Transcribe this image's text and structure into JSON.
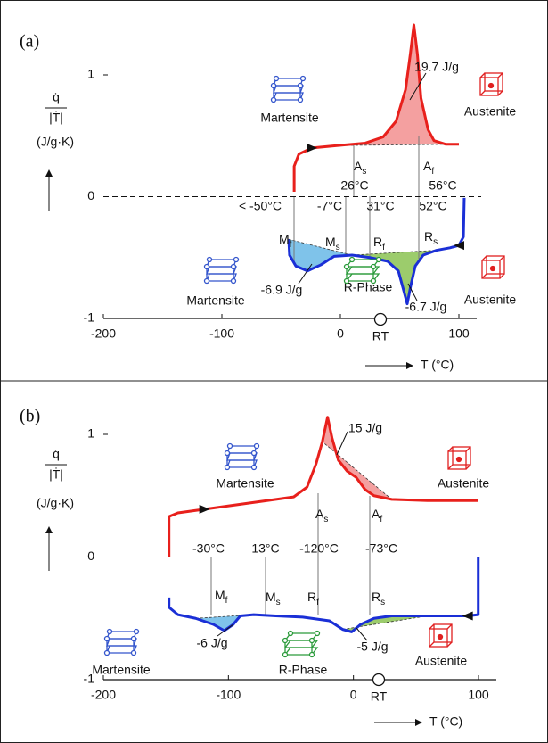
{
  "chart_data": [
    {
      "type": "line",
      "panel_label": "(a)",
      "y_label_top": "q̇",
      "y_label_bottom": "|Ṫ|",
      "y_unit": "(J/g·K)",
      "x_label": "T (°C)",
      "rt_label": "RT",
      "xlim": [
        -200,
        100
      ],
      "ylim": [
        -1,
        1
      ],
      "xticks": [
        -200,
        -100,
        0,
        100
      ],
      "yticks": [
        -1,
        0,
        1
      ],
      "series": [
        {
          "color": "#e8201c",
          "x": [
            -39,
            -39,
            -35,
            -24,
            -2,
            21,
            36,
            47,
            55,
            59,
            62,
            65,
            68,
            74,
            79,
            89,
            100
          ],
          "values": [
            0.04,
            0.25,
            0.35,
            0.4,
            0.42,
            0.44,
            0.49,
            0.62,
            0.88,
            1.17,
            1.41,
            1.17,
            0.81,
            0.55,
            0.46,
            0.43,
            0.43
          ]
        },
        {
          "color": "#1a2fd6",
          "x": [
            104.5,
            103.8,
            100,
            92.5,
            81.2,
            69.9,
            63.2,
            59.4,
            56.4,
            53.4,
            48.9,
            39.8,
            24.8,
            9.8,
            -5.3,
            -16.5,
            -27.8,
            -37.6,
            -42.9,
            -43.6
          ],
          "values": [
            -0.01,
            -0.33,
            -0.4,
            -0.42,
            -0.44,
            -0.48,
            -0.57,
            -0.73,
            -0.88,
            -0.77,
            -0.61,
            -0.53,
            -0.5,
            -0.48,
            -0.49,
            -0.56,
            -0.61,
            -0.57,
            -0.48,
            -0.35
          ]
        }
      ],
      "transitions": [
        {
          "symbol": "A",
          "sub": "s",
          "temp": "26°C"
        },
        {
          "symbol": "A",
          "sub": "f",
          "temp": "56°C"
        },
        {
          "symbol": "M",
          "sub": "f",
          "temp": "< -50°C"
        },
        {
          "symbol": "M",
          "sub": "s",
          "temp": "-7°C"
        },
        {
          "symbol": "R",
          "sub": "f",
          "temp": "31°C"
        },
        {
          "symbol": "R",
          "sub": "s",
          "temp": "52°C"
        }
      ],
      "enthalpies": [
        "19.7 J/g",
        "-6.9 J/g",
        "-6.7 J/g"
      ],
      "phases": [
        "Martensite",
        "Austenite",
        "Martensite",
        "R-Phase",
        "Austenite"
      ]
    },
    {
      "type": "line",
      "panel_label": "(b)",
      "y_label_top": "q̇",
      "y_label_bottom": "|Ṫ|",
      "y_unit": "(J/g·K)",
      "x_label": "T (°C)",
      "rt_label": "RT",
      "xlim": [
        -200,
        100
      ],
      "ylim": [
        -1,
        1
      ],
      "xticks": [
        -200,
        -100,
        0,
        100
      ],
      "yticks": [
        -1,
        0,
        1
      ],
      "series": [
        {
          "color": "#e8201c",
          "x": [
            -147.5,
            -147.5,
            -140.4,
            -119,
            -90.5,
            -62,
            -47.8,
            -37.1,
            -29.9,
            -24.9,
            -20.7,
            -17.1,
            -12.1,
            -5,
            2.1,
            9.3,
            16.4,
            30.6,
            59.2,
            99.8
          ],
          "values": [
            0,
            0.33,
            0.36,
            0.39,
            0.43,
            0.47,
            0.49,
            0.57,
            0.76,
            0.94,
            1.14,
            0.97,
            0.79,
            0.7,
            0.65,
            0.55,
            0.5,
            0.47,
            0.46,
            0.46
          ]
        },
        {
          "color": "#1a2fd6",
          "x": [
            99.8,
            99.8,
            91.2,
            59.2,
            30.6,
            16.4,
            5.7,
            -1.4,
            -8.6,
            -19.2,
            -40.6,
            -62,
            -79.8,
            -90.5,
            -96.2,
            -103.3,
            -111.9,
            -126.2,
            -140.4,
            -147.5,
            -147.5
          ],
          "values": [
            0,
            -0.47,
            -0.48,
            -0.48,
            -0.48,
            -0.5,
            -0.55,
            -0.61,
            -0.59,
            -0.52,
            -0.49,
            -0.48,
            -0.47,
            -0.48,
            -0.55,
            -0.6,
            -0.55,
            -0.5,
            -0.47,
            -0.41,
            -0.33
          ]
        }
      ],
      "transitions": [
        {
          "symbol": "A",
          "sub": "s",
          "temp": "-30°C"
        },
        {
          "symbol": "A",
          "sub": "f",
          "temp": "13°C"
        },
        {
          "symbol": "M",
          "sub": "f",
          "temp": "-120°C"
        },
        {
          "symbol": "M",
          "sub": "s",
          "temp": "-73°C"
        },
        {
          "symbol": "R",
          "sub": "f",
          "temp": "-30°C"
        },
        {
          "symbol": "R",
          "sub": "s",
          "temp": "13°C"
        }
      ],
      "enthalpies": [
        "15 J/g",
        "-6 J/g",
        "-5 J/g"
      ],
      "phases": [
        "Martensite",
        "Austenite",
        "Martensite",
        "R-Phase",
        "Austenite"
      ]
    }
  ]
}
